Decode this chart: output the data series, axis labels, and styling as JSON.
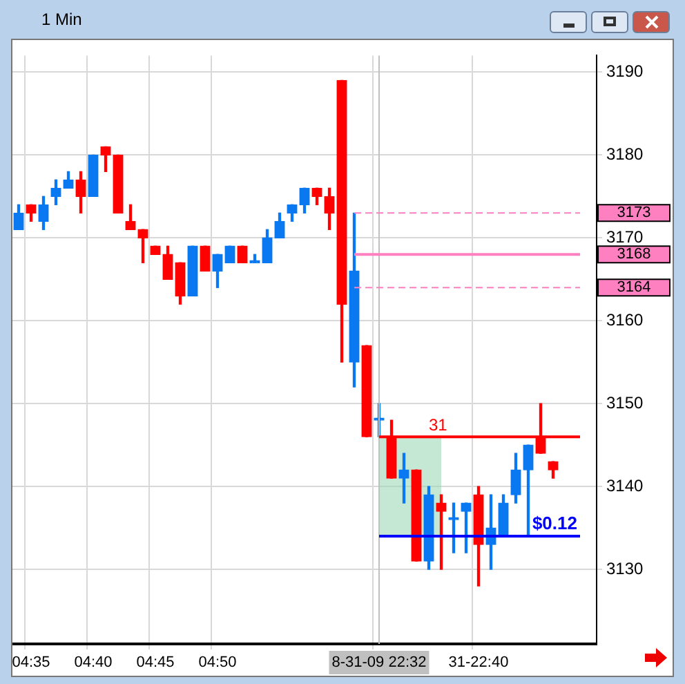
{
  "chart_data": {
    "type": "candlestick",
    "title": "1 Min",
    "categories": [
      null,
      "04:35",
      null,
      null,
      null,
      null,
      "04:40",
      null,
      null,
      null,
      null,
      "04:45",
      null,
      null,
      null,
      null,
      "04:50",
      null,
      null,
      null,
      null,
      null,
      null,
      null,
      null,
      null,
      null,
      null,
      null,
      "8-31-09 22:32",
      null,
      null,
      null,
      null,
      null,
      null,
      null,
      "31-22:40",
      null,
      null,
      null,
      null,
      null,
      null,
      null,
      null,
      null
    ],
    "ohlc": [
      [
        3171,
        3174,
        3171,
        3173
      ],
      [
        3174,
        3174,
        3172,
        3173
      ],
      [
        3172,
        3175,
        3171,
        3174
      ],
      [
        3175,
        3177,
        3174,
        3176
      ],
      [
        3176,
        3178,
        3176,
        3177
      ],
      [
        3177,
        3178,
        3173,
        3175
      ],
      [
        3175,
        3180,
        3175,
        3180
      ],
      [
        3181,
        3181,
        3178,
        3180
      ],
      [
        3180,
        3180,
        3173,
        3173
      ],
      [
        3172,
        3174,
        3171,
        3171
      ],
      [
        3171,
        3171,
        3167,
        3170
      ],
      [
        3169,
        3169,
        3168,
        3168
      ],
      [
        3168,
        3169,
        3165,
        3165
      ],
      [
        3167,
        3167,
        3162,
        3163
      ],
      [
        3163,
        3169,
        3163,
        3169
      ],
      [
        3169,
        3169,
        3166,
        3166
      ],
      [
        3166,
        3168,
        3164,
        3168
      ],
      [
        3167,
        3169,
        3167,
        3169
      ],
      [
        3169,
        3169,
        3167,
        3167
      ],
      [
        3167,
        3168,
        3167,
        3167
      ],
      [
        3167,
        3171,
        3167,
        3170
      ],
      [
        3170,
        3173,
        3170,
        3172
      ],
      [
        3173,
        3174,
        3172,
        3174
      ],
      [
        3174,
        3176,
        3173,
        3176
      ],
      [
        3176,
        3176,
        3174,
        3175
      ],
      [
        3175,
        3176,
        3171,
        3173
      ],
      [
        3189,
        3189,
        3155,
        3162
      ],
      [
        3155,
        3173,
        3152,
        3166
      ],
      [
        3157,
        3157,
        3146,
        3146
      ],
      [
        3148,
        3150,
        3146,
        3148
      ],
      [
        3146,
        3148,
        3141,
        3141
      ],
      [
        3141,
        3144,
        3138,
        3142
      ],
      [
        3142,
        3142,
        3131,
        3131
      ],
      [
        3131,
        3140,
        3130,
        3139
      ],
      [
        3138,
        3139,
        3130,
        3137
      ],
      [
        3136,
        3138,
        3132,
        3136
      ],
      [
        3137,
        3138,
        3132,
        3138
      ],
      [
        3139,
        3140,
        3128,
        3133
      ],
      [
        3133,
        3139,
        3130,
        3135
      ],
      [
        3134,
        3139,
        3134,
        3138
      ],
      [
        3139,
        3144,
        3138,
        3142
      ],
      [
        3142,
        3145,
        3134,
        3145
      ],
      [
        3146,
        3150,
        3144,
        3144
      ],
      [
        3143,
        3143,
        3141,
        3142
      ],
      null,
      null,
      null
    ],
    "colors": [
      "#0a78f0",
      "#ff0000",
      "#0a78f0",
      "#0a78f0",
      "#0a78f0",
      "#ff0000",
      "#0a78f0",
      "#ff0000",
      "#ff0000",
      "#ff0000",
      "#ff0000",
      "#ff0000",
      "#ff0000",
      "#ff0000",
      "#0a78f0",
      "#ff0000",
      "#0a78f0",
      "#0a78f0",
      "#ff0000",
      "#0a78f0",
      "#0a78f0",
      "#0a78f0",
      "#0a78f0",
      "#0a78f0",
      "#ff0000",
      "#ff0000",
      "#ff0000",
      "#0a78f0",
      "#ff0000",
      "#0a78f0",
      "#ff0000",
      "#0a78f0",
      "#ff0000",
      "#0a78f0",
      "#ff0000",
      "#0a78f0",
      "#0a78f0",
      "#ff0000",
      "#0a78f0",
      "#0a78f0",
      "#0a78f0",
      "#0a78f0",
      "#ff0000",
      "#ff0000",
      null,
      null,
      null
    ],
    "ylim": [
      3121,
      3192
    ],
    "yticks": [
      3130,
      3140,
      3150,
      3160,
      3170,
      3180,
      3190
    ],
    "grid": true,
    "legend": false,
    "ref_lines": [
      {
        "axis": "x",
        "value": "8-31-09 22:32",
        "color": "#c0c0c0",
        "line_style": "solid"
      },
      {
        "axis": "y",
        "value": 3173,
        "label": "3173",
        "color": "#ff80c0",
        "line_style": "dashed"
      },
      {
        "axis": "y",
        "value": 3168,
        "label": "3168",
        "color": "#ff80c0",
        "line_style": "solid"
      },
      {
        "axis": "y",
        "value": 3164,
        "label": "3164",
        "color": "#ff80c0",
        "line_style": "dashed"
      },
      {
        "axis": "y",
        "value": 3146,
        "color": "#ff0000",
        "line_style": "solid"
      },
      {
        "axis": "y",
        "value": 3134,
        "color": "#0000ff",
        "line_style": "solid"
      }
    ],
    "bands": [
      {
        "axis": "y",
        "from": 3134,
        "to": 3146,
        "color": "#9fd8b8"
      }
    ],
    "annotations": [
      {
        "text": "31",
        "y": 3146
      },
      {
        "text": "$0.12",
        "y": 3134
      }
    ]
  }
}
